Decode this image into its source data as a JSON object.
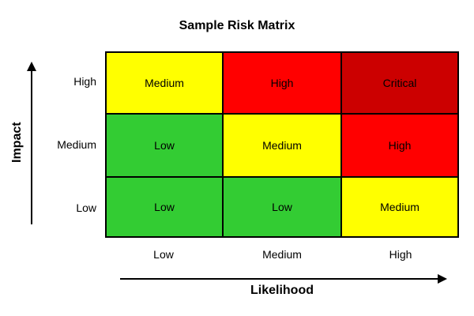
{
  "title": "Sample Risk Matrix",
  "y_axis": {
    "title": "Impact",
    "labels": [
      "High",
      "Medium",
      "Low"
    ]
  },
  "x_axis": {
    "title": "Likelihood",
    "labels": [
      "Low",
      "Medium",
      "High"
    ]
  },
  "colors": {
    "low": "#33CC33",
    "medium": "#FFFF00",
    "high": "#FF0000",
    "critical": "#CC0000",
    "border": "#000000"
  },
  "matrix": {
    "rows": [
      {
        "impact": "High",
        "cells": [
          {
            "label": "Medium",
            "level": "medium"
          },
          {
            "label": "High",
            "level": "high"
          },
          {
            "label": "Critical",
            "level": "critical"
          }
        ]
      },
      {
        "impact": "Medium",
        "cells": [
          {
            "label": "Low",
            "level": "low"
          },
          {
            "label": "Medium",
            "level": "medium"
          },
          {
            "label": "High",
            "level": "high"
          }
        ]
      },
      {
        "impact": "Low",
        "cells": [
          {
            "label": "Low",
            "level": "low"
          },
          {
            "label": "Low",
            "level": "low"
          },
          {
            "label": "Medium",
            "level": "medium"
          }
        ]
      }
    ]
  }
}
